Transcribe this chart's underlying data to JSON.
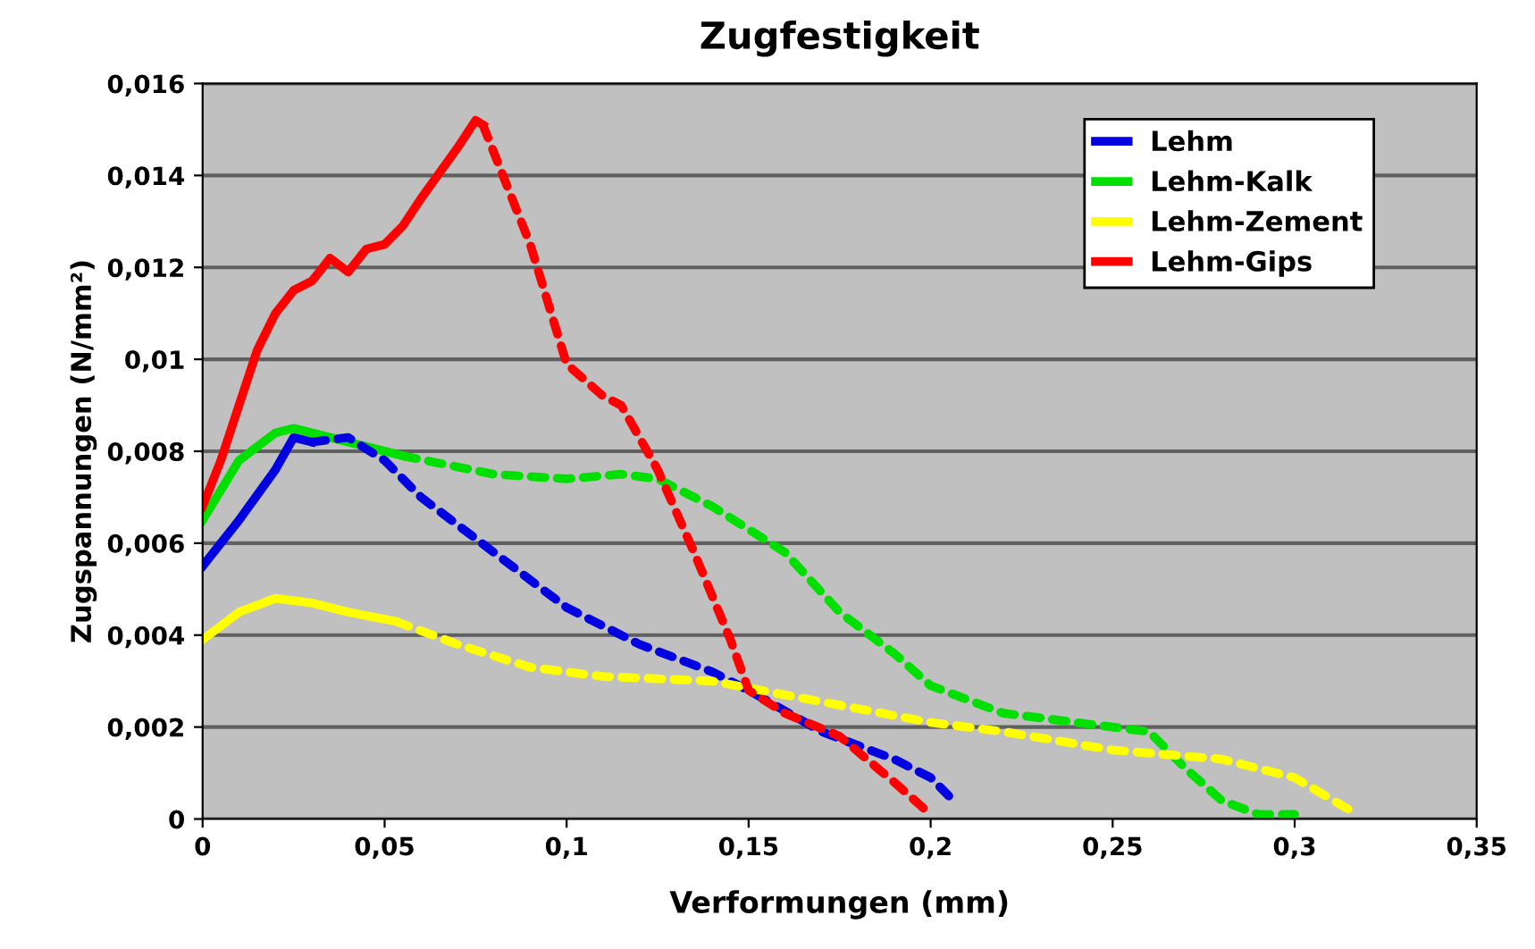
{
  "chart_data": {
    "type": "line",
    "title": "Zugfestigkeit",
    "xlabel": "Verformungen (mm)",
    "ylabel": "Zugspannungen (N/mm²)",
    "xlim": [
      0,
      0.35
    ],
    "ylim": [
      0,
      0.016
    ],
    "xticks": [
      0,
      {
        "value": 0.05,
        "label": "0,05"
      },
      {
        "value": 0.1,
        "label": "0,1"
      },
      {
        "value": 0.15,
        "label": "0,15"
      },
      {
        "value": 0.2,
        "label": "0,2"
      },
      {
        "value": 0.25,
        "label": "0,25"
      },
      {
        "value": 0.3,
        "label": "0,3"
      },
      {
        "value": 0.35,
        "label": "0,35"
      }
    ],
    "yticks": [
      0,
      {
        "value": 0.002,
        "label": "0,002"
      },
      {
        "value": 0.004,
        "label": "0,004"
      },
      {
        "value": 0.006,
        "label": "0,006"
      },
      {
        "value": 0.008,
        "label": "0,008"
      },
      {
        "value": 0.01,
        "label": "0,01"
      },
      {
        "value": 0.012,
        "label": "0,012"
      },
      {
        "value": 0.014,
        "label": "0,014"
      },
      {
        "value": 0.016,
        "label": "0,016"
      }
    ],
    "grid": "y",
    "legend": "top right",
    "marker": "none",
    "series": [
      {
        "name": "Lehm",
        "color": "#0000e0",
        "line_style": "solid",
        "x": [
          0,
          0.01,
          0.02,
          0.025,
          0.03
        ],
        "values": [
          0.0055,
          0.0065,
          0.0076,
          0.0083,
          0.0082
        ]
      },
      {
        "name": "Lehm-Kalk",
        "color": "#00e000",
        "line_style": "solid",
        "x": [
          0,
          0.01,
          0.02,
          0.025,
          0.035,
          0.045,
          0.055
        ],
        "values": [
          0.0065,
          0.0078,
          0.0084,
          0.0085,
          0.0083,
          0.0081,
          0.0079
        ]
      },
      {
        "name": "Lehm-Zement",
        "color": "#ffff00",
        "line_style": "solid",
        "x": [
          0,
          0.01,
          0.02,
          0.03,
          0.04,
          0.053
        ],
        "values": [
          0.0039,
          0.0045,
          0.0048,
          0.0047,
          0.0045,
          0.0043
        ]
      },
      {
        "name": "Lehm-Gips",
        "color": "#ff0000",
        "line_style": "solid",
        "x": [
          0,
          0.005,
          0.01,
          0.015,
          0.02,
          0.025,
          0.03,
          0.035,
          0.04,
          0.045,
          0.05,
          0.055,
          0.06,
          0.07,
          0.075,
          0.077
        ],
        "values": [
          0.0068,
          0.0078,
          0.009,
          0.0102,
          0.011,
          0.0115,
          0.0117,
          0.0122,
          0.0119,
          0.0124,
          0.0125,
          0.0129,
          0.0135,
          0.0146,
          0.0152,
          0.0151
        ]
      },
      {
        "color": "#0000e0",
        "line_style": "dashed",
        "x": [
          0.03,
          0.04,
          0.05,
          0.06,
          0.07,
          0.08,
          0.1,
          0.12,
          0.14,
          0.15,
          0.17,
          0.19,
          0.2,
          0.205
        ],
        "values": [
          0.0082,
          0.0083,
          0.0078,
          0.007,
          0.0064,
          0.0058,
          0.0046,
          0.0038,
          0.0032,
          0.0028,
          0.0019,
          0.0013,
          0.0009,
          0.0005
        ]
      },
      {
        "color": "#00e000",
        "line_style": "dashed",
        "x": [
          0.055,
          0.08,
          0.1,
          0.115,
          0.125,
          0.14,
          0.16,
          0.175,
          0.19,
          0.2,
          0.22,
          0.24,
          0.26,
          0.27,
          0.28,
          0.29,
          0.3
        ],
        "values": [
          0.0079,
          0.0075,
          0.0074,
          0.0075,
          0.0074,
          0.0068,
          0.0058,
          0.0045,
          0.0036,
          0.0029,
          0.0023,
          0.0021,
          0.0019,
          0.0011,
          0.0004,
          0.0001,
          0.0001
        ]
      },
      {
        "color": "#ffff00",
        "line_style": "dashed",
        "x": [
          0.053,
          0.07,
          0.09,
          0.11,
          0.14,
          0.16,
          0.18,
          0.2,
          0.22,
          0.25,
          0.28,
          0.3,
          0.315
        ],
        "values": [
          0.0043,
          0.0038,
          0.0033,
          0.0031,
          0.003,
          0.0027,
          0.0024,
          0.0021,
          0.0019,
          0.0015,
          0.0013,
          0.0009,
          0.0002
        ]
      },
      {
        "color": "#ff0000",
        "line_style": "dashed",
        "x": [
          0.077,
          0.09,
          0.1,
          0.11,
          0.115,
          0.125,
          0.135,
          0.145,
          0.15,
          0.16,
          0.175,
          0.19,
          0.2
        ],
        "values": [
          0.0151,
          0.0125,
          0.0099,
          0.0092,
          0.009,
          0.0076,
          0.0058,
          0.0039,
          0.0028,
          0.0023,
          0.0018,
          0.0008,
          0.0001
        ]
      }
    ]
  }
}
